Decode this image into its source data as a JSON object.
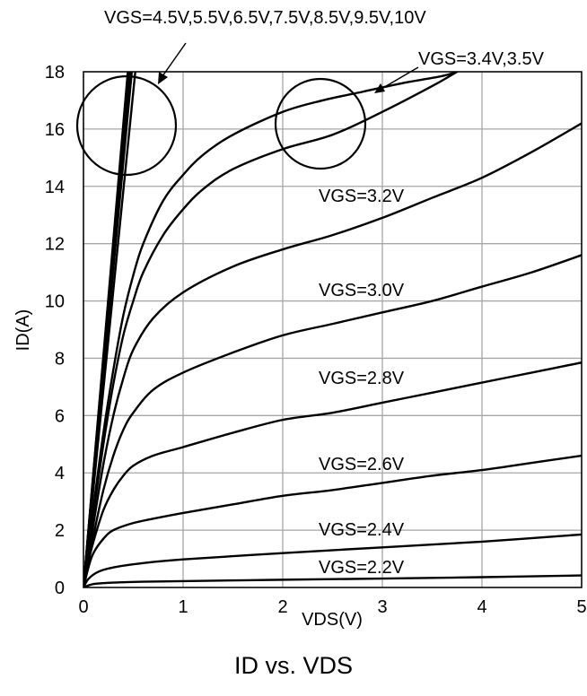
{
  "caption": "ID vs. VDS",
  "chart_data": {
    "type": "line",
    "title": "ID vs. VDS",
    "xlabel": "VDS(V)",
    "ylabel": "ID(A)",
    "xlim": [
      0,
      5
    ],
    "ylim": [
      0,
      18
    ],
    "xticks": [
      0,
      1,
      2,
      3,
      4,
      5
    ],
    "yticks": [
      0,
      2,
      4,
      6,
      8,
      10,
      12,
      14,
      16,
      18
    ],
    "grid": true,
    "line_color": "#000000",
    "grid_color": "#a6a6a6",
    "series": [
      {
        "name": "VGS=2.2V",
        "x": [
          0,
          0.1,
          0.3,
          0.6,
          1,
          2,
          3,
          4,
          5
        ],
        "y": [
          0,
          0.12,
          0.17,
          0.2,
          0.22,
          0.27,
          0.31,
          0.36,
          0.42
        ]
      },
      {
        "name": "VGS=2.4V",
        "x": [
          0,
          0.05,
          0.15,
          0.3,
          0.6,
          1,
          2,
          3,
          4,
          5
        ],
        "y": [
          0,
          0.3,
          0.55,
          0.7,
          0.85,
          0.98,
          1.2,
          1.4,
          1.6,
          1.85
        ]
      },
      {
        "name": "VGS=2.6V",
        "x": [
          0,
          0.05,
          0.1,
          0.2,
          0.3,
          0.5,
          0.7,
          1,
          1.5,
          2,
          2.5,
          3,
          3.5,
          4,
          4.5,
          5
        ],
        "y": [
          0,
          0.7,
          1.2,
          1.7,
          2.0,
          2.25,
          2.4,
          2.6,
          2.9,
          3.2,
          3.4,
          3.65,
          3.9,
          4.1,
          4.35,
          4.6
        ]
      },
      {
        "name": "VGS=2.8V",
        "x": [
          0,
          0.05,
          0.1,
          0.2,
          0.3,
          0.4,
          0.5,
          0.7,
          1,
          1.5,
          2,
          2.5,
          3,
          3.5,
          4,
          4.5,
          5
        ],
        "y": [
          0,
          0.9,
          1.6,
          2.7,
          3.4,
          3.9,
          4.25,
          4.6,
          4.9,
          5.4,
          5.85,
          6.1,
          6.45,
          6.8,
          7.15,
          7.5,
          7.85
        ]
      },
      {
        "name": "VGS=3.0V",
        "x": [
          0,
          0.1,
          0.2,
          0.3,
          0.4,
          0.5,
          0.7,
          1,
          1.5,
          2,
          2.5,
          3,
          3.5,
          4,
          4.5,
          5
        ],
        "y": [
          0,
          1.8,
          3.4,
          4.6,
          5.5,
          6.1,
          6.9,
          7.5,
          8.2,
          8.8,
          9.2,
          9.6,
          10.0,
          10.5,
          11.0,
          11.6
        ]
      },
      {
        "name": "VGS=3.2V",
        "x": [
          0,
          0.1,
          0.2,
          0.3,
          0.4,
          0.5,
          0.7,
          1,
          1.5,
          2,
          2.5,
          3,
          3.5,
          4,
          4.5,
          5
        ],
        "y": [
          0,
          2.2,
          4.3,
          6.0,
          7.3,
          8.3,
          9.4,
          10.3,
          11.2,
          11.8,
          12.3,
          12.9,
          13.6,
          14.3,
          15.2,
          16.2
        ]
      },
      {
        "name": "VGS=3.4V",
        "x": [
          0,
          0.1,
          0.2,
          0.3,
          0.4,
          0.5,
          0.6,
          0.8,
          1,
          1.2,
          1.5,
          2,
          2.5,
          3,
          3.5,
          3.75
        ],
        "y": [
          0,
          2.6,
          5.0,
          7.1,
          8.8,
          10.0,
          11.0,
          12.3,
          13.2,
          13.9,
          14.6,
          15.3,
          15.8,
          16.6,
          17.5,
          18.0
        ]
      },
      {
        "name": "VGS=3.5V",
        "x": [
          0,
          0.1,
          0.2,
          0.3,
          0.4,
          0.5,
          0.6,
          0.8,
          1,
          1.2,
          1.5,
          2,
          2.4,
          2.8,
          3.2,
          3.6,
          3.75
        ],
        "y": [
          0,
          2.8,
          5.4,
          7.6,
          9.5,
          10.9,
          12.0,
          13.5,
          14.4,
          15.1,
          15.8,
          16.6,
          17.0,
          17.3,
          17.6,
          17.85,
          18.0
        ]
      },
      {
        "name": "VGS=4.5V",
        "x": [
          0,
          0.52
        ],
        "y": [
          0,
          18
        ]
      },
      {
        "name": "VGS=5.5V",
        "x": [
          0,
          0.485
        ],
        "y": [
          0,
          18
        ]
      },
      {
        "name": "VGS=6.5V",
        "x": [
          0,
          0.47
        ],
        "y": [
          0,
          18
        ]
      },
      {
        "name": "VGS=7.5V",
        "x": [
          0,
          0.46
        ],
        "y": [
          0,
          18
        ]
      },
      {
        "name": "VGS=8.5V",
        "x": [
          0,
          0.455
        ],
        "y": [
          0,
          18
        ]
      },
      {
        "name": "VGS=9.5V",
        "x": [
          0,
          0.45
        ],
        "y": [
          0,
          18
        ]
      },
      {
        "name": "VGS=10V",
        "x": [
          0,
          0.445
        ],
        "y": [
          0,
          18
        ]
      }
    ],
    "annotations": [
      {
        "text": "VGS=4.5V,5.5V,6.5V,7.5V,8.5V,9.5V,10V",
        "target": "steep lines circled at top-left"
      },
      {
        "text": "VGS=3.4V,3.5V",
        "target": "two curves circled near VDS≈2.4V"
      },
      {
        "text": "VGS=3.2V"
      },
      {
        "text": "VGS=3.0V"
      },
      {
        "text": "VGS=2.8V"
      },
      {
        "text": "VGS=2.6V"
      },
      {
        "text": "VGS=2.4V"
      },
      {
        "text": "VGS=2.2V"
      }
    ]
  }
}
